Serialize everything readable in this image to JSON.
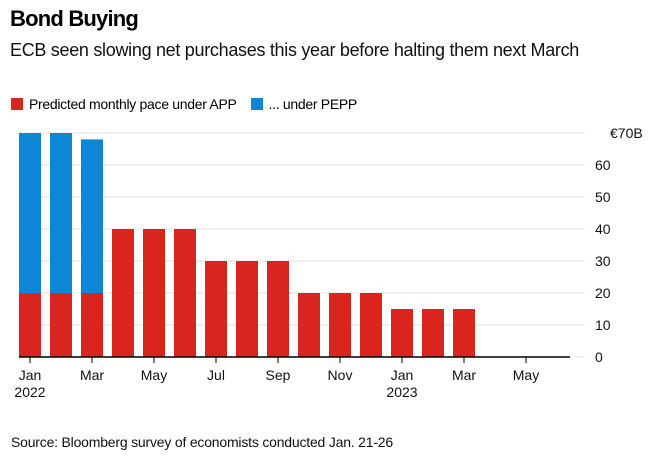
{
  "title": "Bond Buying",
  "subtitle": "ECB seen slowing net purchases this year before halting them next March",
  "source": "Source: Bloomberg survey of economists conducted Jan. 21-26",
  "colors": {
    "app": "#d9251e",
    "pepp": "#0d86d6",
    "grid": "#e0e0e0",
    "axis": "#000000"
  },
  "chart_data": {
    "type": "bar",
    "stacked": true,
    "title": "Bond Buying",
    "subtitle": "ECB seen slowing net purchases this year before halting them next March",
    "xlabel": "",
    "ylabel": "",
    "ylim": [
      0,
      70
    ],
    "y_ticks": [
      0,
      10,
      20,
      30,
      40,
      50,
      60,
      70
    ],
    "y_tick_labels": [
      "0",
      "10",
      "20",
      "30",
      "40",
      "50",
      "60",
      "€70B"
    ],
    "y_axis_side": "right",
    "grid": true,
    "legend_position": "top-left",
    "categories": [
      "Jan 2022",
      "Feb 2022",
      "Mar 2022",
      "Apr 2022",
      "May 2022",
      "Jun 2022",
      "Jul 2022",
      "Aug 2022",
      "Sep 2022",
      "Oct 2022",
      "Nov 2022",
      "Dec 2022",
      "Jan 2023",
      "Feb 2023",
      "Mar 2023",
      "Apr 2023",
      "May 2023",
      "Jun 2023"
    ],
    "x_ticks": [
      {
        "index": 0,
        "label": "Jan",
        "sublabel": "2022"
      },
      {
        "index": 2,
        "label": "Mar",
        "sublabel": ""
      },
      {
        "index": 4,
        "label": "May",
        "sublabel": ""
      },
      {
        "index": 6,
        "label": "Jul",
        "sublabel": ""
      },
      {
        "index": 8,
        "label": "Sep",
        "sublabel": ""
      },
      {
        "index": 10,
        "label": "Nov",
        "sublabel": ""
      },
      {
        "index": 12,
        "label": "Jan",
        "sublabel": "2023"
      },
      {
        "index": 14,
        "label": "Mar",
        "sublabel": ""
      },
      {
        "index": 16,
        "label": "May",
        "sublabel": ""
      }
    ],
    "series": [
      {
        "name": "Predicted monthly pace under APP",
        "color": "#d9251e",
        "values": [
          20,
          20,
          20,
          40,
          40,
          40,
          30,
          30,
          30,
          20,
          20,
          20,
          15,
          15,
          15,
          0,
          0,
          0
        ]
      },
      {
        "name": "... under PEPP",
        "color": "#0d86d6",
        "values": [
          50,
          50,
          48,
          0,
          0,
          0,
          0,
          0,
          0,
          0,
          0,
          0,
          0,
          0,
          0,
          0,
          0,
          0
        ]
      }
    ]
  }
}
